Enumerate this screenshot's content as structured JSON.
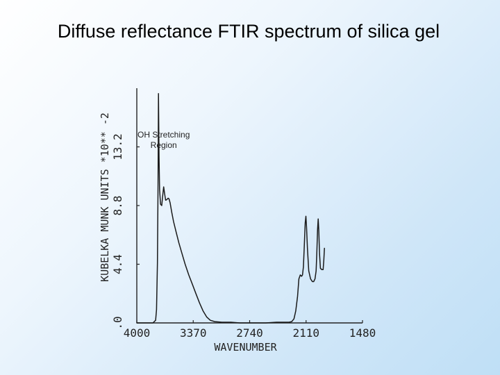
{
  "slide": {
    "title": "Diffuse reflectance FTIR spectrum of silica gel"
  },
  "chart_data": {
    "type": "line",
    "title": "Diffuse reflectance FTIR spectrum of silica gel",
    "xlabel": "WAVENUMBER",
    "ylabel": "KUBELKA MUNK UNITS *10** -2",
    "x_ticks": [
      "4000",
      "3370",
      "2740",
      "2110",
      "1480"
    ],
    "y_ticks": [
      ".0",
      "4.4",
      "8.8",
      "13.2"
    ],
    "xlim": [
      4000,
      1480
    ],
    "ylim": [
      0,
      17.6
    ],
    "x_reversed": true,
    "grid": false,
    "annotation": {
      "lines": [
        "OH Stretching",
        "Region"
      ],
      "x": 3700,
      "y": 13.9
    },
    "series": [
      {
        "points": [
          [
            4000,
            0.0
          ],
          [
            3900,
            0.0
          ],
          [
            3820,
            0.0
          ],
          [
            3790,
            0.2
          ],
          [
            3780,
            1.0
          ],
          [
            3770,
            4.5
          ],
          [
            3763,
            10.5
          ],
          [
            3758,
            17.2
          ],
          [
            3752,
            12.5
          ],
          [
            3746,
            10.0
          ],
          [
            3735,
            8.9
          ],
          [
            3722,
            8.8
          ],
          [
            3710,
            9.6
          ],
          [
            3700,
            10.2
          ],
          [
            3690,
            9.7
          ],
          [
            3678,
            9.2
          ],
          [
            3665,
            9.25
          ],
          [
            3650,
            9.35
          ],
          [
            3640,
            9.3
          ],
          [
            3628,
            9.0
          ],
          [
            3610,
            8.3
          ],
          [
            3590,
            7.6
          ],
          [
            3560,
            6.8
          ],
          [
            3530,
            6.0
          ],
          [
            3500,
            5.3
          ],
          [
            3460,
            4.4
          ],
          [
            3420,
            3.6
          ],
          [
            3380,
            2.9
          ],
          [
            3340,
            2.2
          ],
          [
            3300,
            1.5
          ],
          [
            3260,
            0.9
          ],
          [
            3220,
            0.45
          ],
          [
            3180,
            0.2
          ],
          [
            3130,
            0.1
          ],
          [
            3050,
            0.05
          ],
          [
            2950,
            0.05
          ],
          [
            2850,
            0.0
          ],
          [
            2700,
            0.0
          ],
          [
            2560,
            0.0
          ],
          [
            2440,
            0.05
          ],
          [
            2360,
            0.05
          ],
          [
            2300,
            0.05
          ],
          [
            2270,
            0.1
          ],
          [
            2245,
            0.3
          ],
          [
            2225,
            0.9
          ],
          [
            2205,
            2.0
          ],
          [
            2190,
            3.3
          ],
          [
            2175,
            3.6
          ],
          [
            2160,
            3.5
          ],
          [
            2150,
            3.6
          ],
          [
            2140,
            4.2
          ],
          [
            2130,
            5.8
          ],
          [
            2120,
            7.5
          ],
          [
            2112,
            8.0
          ],
          [
            2105,
            7.2
          ],
          [
            2095,
            5.6
          ],
          [
            2080,
            3.9
          ],
          [
            2060,
            3.3
          ],
          [
            2040,
            3.1
          ],
          [
            2025,
            3.1
          ],
          [
            2010,
            3.3
          ],
          [
            1998,
            3.9
          ],
          [
            1990,
            5.2
          ],
          [
            1982,
            7.0
          ],
          [
            1975,
            7.8
          ],
          [
            1968,
            6.9
          ],
          [
            1960,
            5.2
          ],
          [
            1950,
            4.1
          ],
          [
            1935,
            4.0
          ],
          [
            1920,
            4.0
          ],
          [
            1912,
            4.7
          ],
          [
            1905,
            5.6
          ]
        ]
      }
    ]
  }
}
